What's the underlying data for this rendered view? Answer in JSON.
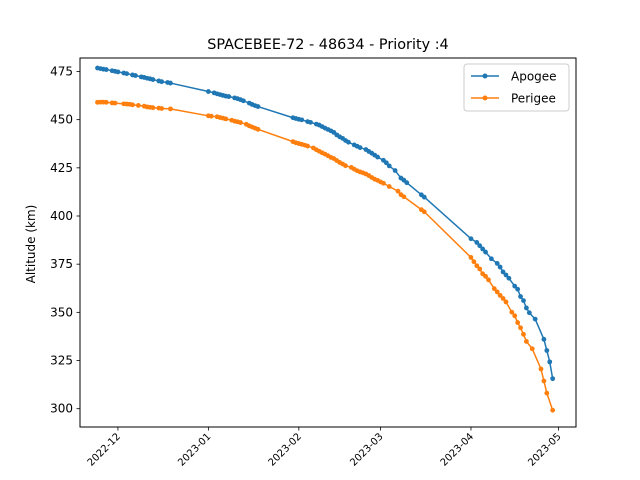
{
  "chart_data": {
    "type": "line",
    "title": "SPACEBEE-72 - 48634 - Priority :4",
    "xlabel": "",
    "ylabel": "Altitude (km)",
    "xlim": [
      "2022-11-18",
      "2023-05-07"
    ],
    "ylim": [
      290.5,
      482
    ],
    "yticks": [
      300,
      325,
      350,
      375,
      400,
      425,
      450,
      475
    ],
    "xticks": [
      "2022-12-01",
      "2023-01-01",
      "2023-02-01",
      "2023-03-01",
      "2023-04-01",
      "2023-05-01"
    ],
    "xtick_labels": [
      "2022-12",
      "2023-01",
      "2023-02",
      "2023-03",
      "2023-04",
      "2023-05"
    ],
    "grid": false,
    "legend_position": "top-right",
    "series": [
      {
        "name": "Apogee",
        "color": "#1f77b4",
        "marker": "dot",
        "points": [
          [
            "2022-11-24",
            476.8
          ],
          [
            "2022-11-25",
            476.5
          ],
          [
            "2022-11-26",
            476.2
          ],
          [
            "2022-11-27",
            476.0
          ],
          [
            "2022-11-29",
            475.4
          ],
          [
            "2022-11-30",
            475.1
          ],
          [
            "2022-12-01",
            474.8
          ],
          [
            "2022-12-03",
            474.2
          ],
          [
            "2022-12-04",
            473.9
          ],
          [
            "2022-12-06",
            473.2
          ],
          [
            "2022-12-07",
            472.9
          ],
          [
            "2022-12-09",
            472.2
          ],
          [
            "2022-12-10",
            471.9
          ],
          [
            "2022-12-11",
            471.5
          ],
          [
            "2022-12-12",
            471.2
          ],
          [
            "2022-12-13",
            470.8
          ],
          [
            "2022-12-15",
            470.1
          ],
          [
            "2022-12-16",
            469.7
          ],
          [
            "2022-12-18",
            469.3
          ],
          [
            "2022-12-19",
            469.0
          ],
          [
            "2023-01-01",
            464.6
          ],
          [
            "2023-01-03",
            463.9
          ],
          [
            "2023-01-04",
            463.4
          ],
          [
            "2023-01-05",
            463.0
          ],
          [
            "2023-01-06",
            462.6
          ],
          [
            "2023-01-07",
            462.2
          ],
          [
            "2023-01-08",
            462.0
          ],
          [
            "2023-01-10",
            461.3
          ],
          [
            "2023-01-11",
            460.9
          ],
          [
            "2023-01-12",
            460.4
          ],
          [
            "2023-01-13",
            459.8
          ],
          [
            "2023-01-15",
            458.6
          ],
          [
            "2023-01-16",
            457.9
          ],
          [
            "2023-01-17",
            457.3
          ],
          [
            "2023-01-18",
            456.8
          ],
          [
            "2023-01-30",
            451.0
          ],
          [
            "2023-01-31",
            450.6
          ],
          [
            "2023-02-01",
            450.2
          ],
          [
            "2023-02-02",
            449.9
          ],
          [
            "2023-02-04",
            449.0
          ],
          [
            "2023-02-05",
            448.6
          ],
          [
            "2023-02-07",
            447.7
          ],
          [
            "2023-02-08",
            447.2
          ],
          [
            "2023-02-09",
            446.4
          ],
          [
            "2023-02-10",
            445.6
          ],
          [
            "2023-02-11",
            444.9
          ],
          [
            "2023-02-12",
            444.2
          ],
          [
            "2023-02-13",
            443.4
          ],
          [
            "2023-02-14",
            442.1
          ],
          [
            "2023-02-15",
            441.1
          ],
          [
            "2023-02-16",
            440.3
          ],
          [
            "2023-02-17",
            439.2
          ],
          [
            "2023-02-18",
            438.3
          ],
          [
            "2023-02-20",
            436.9
          ],
          [
            "2023-02-21",
            436.2
          ],
          [
            "2023-02-22",
            435.5
          ],
          [
            "2023-02-24",
            434.5
          ],
          [
            "2023-02-25",
            433.5
          ],
          [
            "2023-02-26",
            432.6
          ],
          [
            "2023-02-27",
            431.6
          ],
          [
            "2023-02-28",
            430.6
          ],
          [
            "2023-03-02",
            428.9
          ],
          [
            "2023-03-03",
            427.6
          ],
          [
            "2023-03-04",
            426.0
          ],
          [
            "2023-03-06",
            423.6
          ],
          [
            "2023-03-08",
            419.7
          ],
          [
            "2023-03-09",
            418.6
          ],
          [
            "2023-03-10",
            417.3
          ],
          [
            "2023-03-15",
            411.0
          ],
          [
            "2023-03-16",
            409.8
          ],
          [
            "2023-04-01",
            388.2
          ],
          [
            "2023-04-03",
            386.3
          ],
          [
            "2023-04-04",
            384.6
          ],
          [
            "2023-04-05",
            382.9
          ],
          [
            "2023-04-06",
            381.3
          ],
          [
            "2023-04-08",
            377.8
          ],
          [
            "2023-04-10",
            375.4
          ],
          [
            "2023-04-11",
            373.5
          ],
          [
            "2023-04-12",
            371.0
          ],
          [
            "2023-04-13",
            369.4
          ],
          [
            "2023-04-14",
            367.7
          ],
          [
            "2023-04-16",
            363.6
          ],
          [
            "2023-04-17",
            362.0
          ],
          [
            "2023-04-18",
            358.2
          ],
          [
            "2023-04-19",
            356.1
          ],
          [
            "2023-04-20",
            352.3
          ],
          [
            "2023-04-21",
            349.8
          ],
          [
            "2023-04-23",
            346.5
          ],
          [
            "2023-04-26",
            336.0
          ],
          [
            "2023-04-27",
            330.2
          ],
          [
            "2023-04-28",
            324.3
          ],
          [
            "2023-04-29",
            315.6
          ]
        ]
      },
      {
        "name": "Perigee",
        "color": "#ff7f0e",
        "marker": "dot",
        "points": [
          [
            "2022-11-24",
            459.0
          ],
          [
            "2022-11-25",
            459.1
          ],
          [
            "2022-11-26",
            459.1
          ],
          [
            "2022-11-27",
            459.0
          ],
          [
            "2022-11-29",
            458.7
          ],
          [
            "2022-11-30",
            458.6
          ],
          [
            "2022-12-03",
            458.2
          ],
          [
            "2022-12-04",
            458.1
          ],
          [
            "2022-12-05",
            458.0
          ],
          [
            "2022-12-06",
            457.7
          ],
          [
            "2022-12-08",
            457.4
          ],
          [
            "2022-12-10",
            457.0
          ],
          [
            "2022-12-11",
            456.6
          ],
          [
            "2022-12-12",
            456.4
          ],
          [
            "2022-12-13",
            456.2
          ],
          [
            "2022-12-15",
            456.0
          ],
          [
            "2022-12-16",
            455.8
          ],
          [
            "2022-12-19",
            455.6
          ],
          [
            "2023-01-01",
            452.0
          ],
          [
            "2023-01-02",
            451.8
          ],
          [
            "2023-01-04",
            451.5
          ],
          [
            "2023-01-05",
            451.1
          ],
          [
            "2023-01-06",
            450.8
          ],
          [
            "2023-01-07",
            450.4
          ],
          [
            "2023-01-09",
            449.7
          ],
          [
            "2023-01-10",
            449.2
          ],
          [
            "2023-01-11",
            448.9
          ],
          [
            "2023-01-12",
            448.5
          ],
          [
            "2023-01-14",
            447.6
          ],
          [
            "2023-01-15",
            446.8
          ],
          [
            "2023-01-16",
            446.2
          ],
          [
            "2023-01-17",
            445.6
          ],
          [
            "2023-01-18",
            445.0
          ],
          [
            "2023-01-30",
            438.6
          ],
          [
            "2023-01-31",
            438.0
          ],
          [
            "2023-02-01",
            437.6
          ],
          [
            "2023-02-02",
            437.2
          ],
          [
            "2023-02-03",
            436.8
          ],
          [
            "2023-02-04",
            436.3
          ],
          [
            "2023-02-06",
            435.3
          ],
          [
            "2023-02-07",
            434.4
          ],
          [
            "2023-02-08",
            433.6
          ],
          [
            "2023-02-09",
            432.8
          ],
          [
            "2023-02-10",
            432.1
          ],
          [
            "2023-02-11",
            431.3
          ],
          [
            "2023-02-12",
            430.4
          ],
          [
            "2023-02-13",
            429.8
          ],
          [
            "2023-02-14",
            428.8
          ],
          [
            "2023-02-15",
            427.8
          ],
          [
            "2023-02-16",
            427.0
          ],
          [
            "2023-02-17",
            426.1
          ],
          [
            "2023-02-19",
            425.2
          ],
          [
            "2023-02-20",
            424.3
          ],
          [
            "2023-02-21",
            423.5
          ],
          [
            "2023-02-22",
            422.9
          ],
          [
            "2023-02-23",
            422.4
          ],
          [
            "2023-02-24",
            421.8
          ],
          [
            "2023-02-25",
            421.0
          ],
          [
            "2023-02-26",
            420.0
          ],
          [
            "2023-02-27",
            419.1
          ],
          [
            "2023-02-28",
            418.5
          ],
          [
            "2023-03-01",
            417.7
          ],
          [
            "2023-03-02",
            417.0
          ],
          [
            "2023-03-04",
            415.3
          ],
          [
            "2023-03-07",
            412.9
          ],
          [
            "2023-03-08",
            411.1
          ],
          [
            "2023-03-09",
            410.0
          ],
          [
            "2023-03-15",
            403.3
          ],
          [
            "2023-03-16",
            402.2
          ],
          [
            "2023-04-01",
            378.5
          ],
          [
            "2023-04-02",
            376.3
          ],
          [
            "2023-04-03",
            374.2
          ],
          [
            "2023-04-04",
            372.5
          ],
          [
            "2023-04-05",
            370.0
          ],
          [
            "2023-04-06",
            368.7
          ],
          [
            "2023-04-07",
            366.9
          ],
          [
            "2023-04-09",
            362.3
          ],
          [
            "2023-04-10",
            360.6
          ],
          [
            "2023-04-11",
            358.8
          ],
          [
            "2023-04-12",
            357.2
          ],
          [
            "2023-04-13",
            355.4
          ],
          [
            "2023-04-15",
            350.1
          ],
          [
            "2023-04-16",
            348.2
          ],
          [
            "2023-04-17",
            344.7
          ],
          [
            "2023-04-18",
            342.0
          ],
          [
            "2023-04-19",
            338.6
          ],
          [
            "2023-04-20",
            334.9
          ],
          [
            "2023-04-22",
            331.1
          ],
          [
            "2023-04-25",
            320.6
          ],
          [
            "2023-04-26",
            314.4
          ],
          [
            "2023-04-27",
            308.1
          ],
          [
            "2023-04-29",
            299.2
          ]
        ]
      }
    ]
  }
}
